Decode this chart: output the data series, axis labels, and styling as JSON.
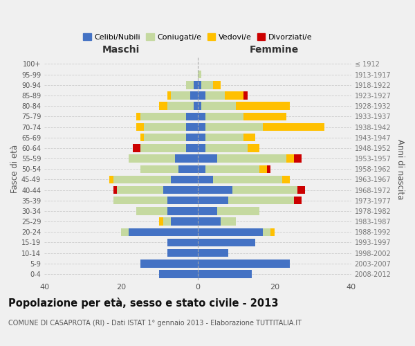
{
  "age_groups": [
    "0-4",
    "5-9",
    "10-14",
    "15-19",
    "20-24",
    "25-29",
    "30-34",
    "35-39",
    "40-44",
    "45-49",
    "50-54",
    "55-59",
    "60-64",
    "65-69",
    "70-74",
    "75-79",
    "80-84",
    "85-89",
    "90-94",
    "95-99",
    "100+"
  ],
  "birth_years": [
    "2008-2012",
    "2003-2007",
    "1998-2002",
    "1993-1997",
    "1988-1992",
    "1983-1987",
    "1978-1982",
    "1973-1977",
    "1968-1972",
    "1963-1967",
    "1958-1962",
    "1953-1957",
    "1948-1952",
    "1943-1947",
    "1938-1942",
    "1933-1937",
    "1928-1932",
    "1923-1927",
    "1918-1922",
    "1913-1917",
    "≤ 1912"
  ],
  "colors": {
    "celibi": "#4472c4",
    "coniugati": "#c5d9a0",
    "vedovi": "#ffc000",
    "divorziati": "#cc0000"
  },
  "maschi": {
    "celibi": [
      10,
      15,
      8,
      8,
      18,
      7,
      8,
      8,
      9,
      7,
      5,
      6,
      3,
      3,
      3,
      3,
      1,
      2,
      1,
      0,
      0
    ],
    "coniugati": [
      0,
      0,
      0,
      0,
      2,
      2,
      8,
      14,
      12,
      15,
      10,
      12,
      12,
      11,
      11,
      12,
      7,
      5,
      2,
      0,
      0
    ],
    "vedovi": [
      0,
      0,
      0,
      0,
      0,
      1,
      0,
      0,
      0,
      1,
      0,
      0,
      0,
      1,
      2,
      1,
      2,
      1,
      0,
      0,
      0
    ],
    "divorziati": [
      0,
      0,
      0,
      0,
      0,
      0,
      0,
      0,
      1,
      0,
      0,
      0,
      2,
      0,
      0,
      0,
      0,
      0,
      0,
      0,
      0
    ]
  },
  "femmine": {
    "celibi": [
      14,
      24,
      8,
      15,
      17,
      6,
      5,
      8,
      9,
      4,
      2,
      5,
      2,
      2,
      2,
      2,
      1,
      2,
      1,
      0,
      0
    ],
    "coniugati": [
      0,
      0,
      0,
      0,
      2,
      4,
      11,
      17,
      17,
      18,
      14,
      18,
      11,
      10,
      15,
      10,
      9,
      5,
      3,
      1,
      0
    ],
    "vedovi": [
      0,
      0,
      0,
      0,
      1,
      0,
      0,
      0,
      0,
      2,
      2,
      2,
      3,
      3,
      16,
      11,
      14,
      5,
      2,
      0,
      0
    ],
    "divorziati": [
      0,
      0,
      0,
      0,
      0,
      0,
      0,
      2,
      2,
      0,
      1,
      2,
      0,
      0,
      0,
      0,
      0,
      1,
      0,
      0,
      0
    ]
  },
  "xlim": 40,
  "title": "Popolazione per età, sesso e stato civile - 2013",
  "subtitle": "COMUNE DI CASAPROTA (RI) - Dati ISTAT 1° gennaio 2013 - Elaborazione TUTTITALIA.IT",
  "ylabel_left": "Fasce di età",
  "ylabel_right": "Anni di nascita",
  "xlabel_maschi": "Maschi",
  "xlabel_femmine": "Femmine",
  "legend_labels": [
    "Celibi/Nubili",
    "Coniugati/e",
    "Vedovi/e",
    "Divorziati/e"
  ],
  "background_color": "#f0f0f0"
}
